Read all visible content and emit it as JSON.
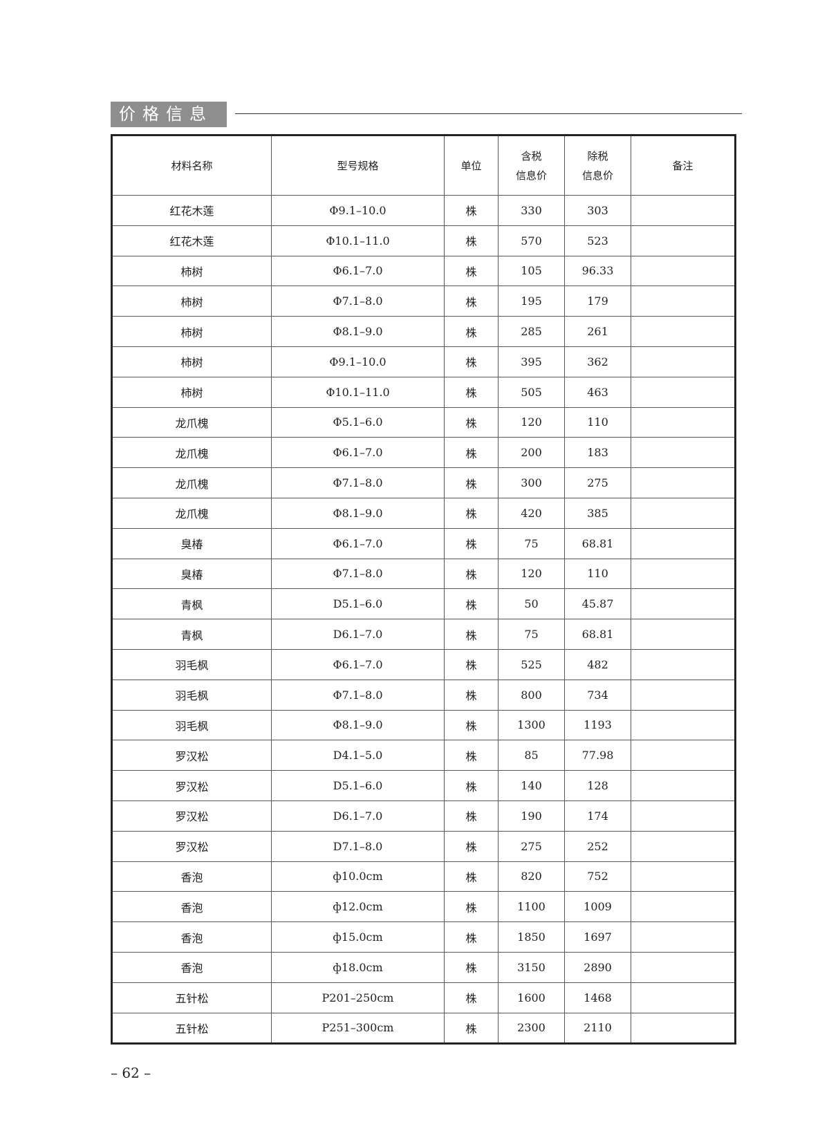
{
  "section_title": "价格信息",
  "headers": [
    "材料名称",
    "型号规格",
    "单位",
    "含税\n信息价",
    "除税\n信息价",
    "备注"
  ],
  "header_parts": {
    "tax_incl": [
      "含税",
      "信息价"
    ],
    "tax_excl": [
      "除税",
      "信息价"
    ]
  },
  "rows": [
    [
      "红花木莲",
      "Φ9.1–10.0",
      "株",
      "330",
      "303",
      ""
    ],
    [
      "红花木莲",
      "Φ10.1–11.0",
      "株",
      "570",
      "523",
      ""
    ],
    [
      "柿树",
      "Φ6.1–7.0",
      "株",
      "105",
      "96.33",
      ""
    ],
    [
      "柿树",
      "Φ7.1–8.0",
      "株",
      "195",
      "179",
      ""
    ],
    [
      "柿树",
      "Φ8.1–9.0",
      "株",
      "285",
      "261",
      ""
    ],
    [
      "柿树",
      "Φ9.1–10.0",
      "株",
      "395",
      "362",
      ""
    ],
    [
      "柿树",
      "Φ10.1–11.0",
      "株",
      "505",
      "463",
      ""
    ],
    [
      "龙爪槐",
      "Φ5.1–6.0",
      "株",
      "120",
      "110",
      ""
    ],
    [
      "龙爪槐",
      "Φ6.1–7.0",
      "株",
      "200",
      "183",
      ""
    ],
    [
      "龙爪槐",
      "Φ7.1–8.0",
      "株",
      "300",
      "275",
      ""
    ],
    [
      "龙爪槐",
      "Φ8.1–9.0",
      "株",
      "420",
      "385",
      ""
    ],
    [
      "臭椿",
      "Φ6.1–7.0",
      "株",
      "75",
      "68.81",
      ""
    ],
    [
      "臭椿",
      "Φ7.1–8.0",
      "株",
      "120",
      "110",
      ""
    ],
    [
      "青枫",
      "D5.1–6.0",
      "株",
      "50",
      "45.87",
      ""
    ],
    [
      "青枫",
      "D6.1–7.0",
      "株",
      "75",
      "68.81",
      ""
    ],
    [
      "羽毛枫",
      "Φ6.1–7.0",
      "株",
      "525",
      "482",
      ""
    ],
    [
      "羽毛枫",
      "Φ7.1–8.0",
      "株",
      "800",
      "734",
      ""
    ],
    [
      "羽毛枫",
      "Φ8.1–9.0",
      "株",
      "1300",
      "1193",
      ""
    ],
    [
      "罗汉松",
      "D4.1–5.0",
      "株",
      "85",
      "77.98",
      ""
    ],
    [
      "罗汉松",
      "D5.1–6.0",
      "株",
      "140",
      "128",
      ""
    ],
    [
      "罗汉松",
      "D6.1–7.0",
      "株",
      "190",
      "174",
      ""
    ],
    [
      "罗汉松",
      "D7.1–8.0",
      "株",
      "275",
      "252",
      ""
    ],
    [
      "香泡",
      "ф10.0cm",
      "株",
      "820",
      "752",
      ""
    ],
    [
      "香泡",
      "ф12.0cm",
      "株",
      "1100",
      "1009",
      ""
    ],
    [
      "香泡",
      "ф15.0cm",
      "株",
      "1850",
      "1697",
      ""
    ],
    [
      "香泡",
      "ф18.0cm",
      "株",
      "3150",
      "2890",
      ""
    ],
    [
      "五针松",
      "P201–250cm",
      "株",
      "1600",
      "1468",
      ""
    ],
    [
      "五针松",
      "P251–300cm",
      "株",
      "2300",
      "2110",
      ""
    ]
  ],
  "page_number": "– 62 –"
}
